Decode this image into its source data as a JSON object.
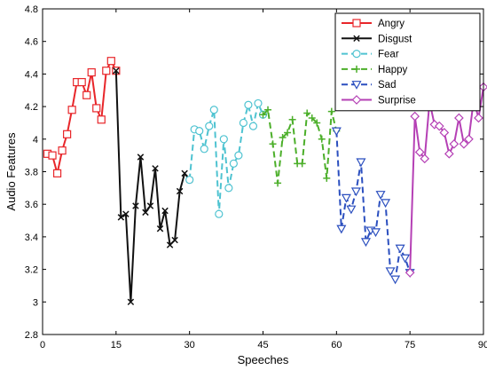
{
  "chart_data": {
    "type": "line",
    "xlabel": "Speeches",
    "ylabel": "Audio Features",
    "xlim": [
      0,
      90
    ],
    "ylim": [
      2.8,
      4.8
    ],
    "xticks": [
      0,
      15,
      30,
      45,
      60,
      75,
      90
    ],
    "yticks": [
      2.8,
      3.0,
      3.2,
      3.4,
      3.6,
      3.8,
      4.0,
      4.2,
      4.4,
      4.6,
      4.8
    ],
    "xtick_labels": [
      "0",
      "15",
      "30",
      "45",
      "60",
      "75",
      "90"
    ],
    "ytick_labels": [
      "2.8",
      "3",
      "3.2",
      "3.4",
      "3.6",
      "3.8",
      "4",
      "4.2",
      "4.4",
      "4.6",
      "4.8"
    ],
    "grid": false,
    "legend_position": "top-right",
    "series": [
      {
        "name": "Angry",
        "color": "#e8262a",
        "line_style": "solid",
        "marker": "square",
        "x": [
          1,
          2,
          3,
          4,
          5,
          6,
          7,
          8,
          9,
          10,
          11,
          12,
          13,
          14,
          15
        ],
        "y": [
          3.91,
          3.9,
          3.79,
          3.93,
          4.03,
          4.18,
          4.35,
          4.35,
          4.27,
          4.41,
          4.19,
          4.12,
          4.42,
          4.48,
          4.42
        ]
      },
      {
        "name": "Disgust",
        "color": "#111111",
        "line_style": "solid",
        "marker": "x",
        "x": [
          15,
          16,
          17,
          18,
          19,
          20,
          21,
          22,
          23,
          24,
          25,
          26,
          27,
          28,
          29,
          30
        ],
        "y": [
          4.42,
          3.52,
          3.54,
          3.0,
          3.59,
          3.89,
          3.55,
          3.59,
          3.82,
          3.45,
          3.56,
          3.35,
          3.38,
          3.68,
          3.79,
          3.75
        ]
      },
      {
        "name": "Fear",
        "color": "#4fc3d1",
        "line_style": "dashed",
        "marker": "circle",
        "x": [
          30,
          31,
          32,
          33,
          34,
          35,
          36,
          37,
          38,
          39,
          40,
          41,
          42,
          43,
          44,
          45
        ],
        "y": [
          3.75,
          4.06,
          4.05,
          3.94,
          4.08,
          4.18,
          3.54,
          4.0,
          3.7,
          3.85,
          3.9,
          4.1,
          4.21,
          4.08,
          4.22,
          4.15
        ]
      },
      {
        "name": "Happy",
        "color": "#4caf2a",
        "line_style": "dashed",
        "marker": "plus",
        "x": [
          45,
          46,
          47,
          48,
          49,
          50,
          51,
          52,
          53,
          54,
          55,
          56,
          57,
          58,
          59,
          60
        ],
        "y": [
          4.15,
          4.18,
          3.97,
          3.73,
          4.01,
          4.04,
          4.12,
          3.85,
          3.85,
          4.16,
          4.13,
          4.1,
          4.0,
          3.76,
          4.17,
          4.05
        ]
      },
      {
        "name": "Sad",
        "color": "#2b4fbf",
        "line_style": "dashed",
        "marker": "triangle-down",
        "x": [
          60,
          61,
          62,
          63,
          64,
          65,
          66,
          67,
          68,
          69,
          70,
          71,
          72,
          73,
          74,
          75
        ],
        "y": [
          4.05,
          3.45,
          3.64,
          3.57,
          3.68,
          3.86,
          3.37,
          3.44,
          3.43,
          3.66,
          3.61,
          3.19,
          3.14,
          3.33,
          3.27,
          3.18
        ]
      },
      {
        "name": "Surprise",
        "color": "#b540b5",
        "line_style": "solid",
        "marker": "diamond",
        "x": [
          75,
          76,
          77,
          78,
          79,
          80,
          81,
          82,
          83,
          84,
          85,
          86,
          87,
          88,
          89,
          90
        ],
        "y": [
          3.18,
          4.14,
          3.92,
          3.88,
          4.23,
          4.09,
          4.08,
          4.04,
          3.91,
          3.97,
          4.13,
          3.97,
          4.0,
          4.24,
          4.13,
          4.32
        ]
      }
    ]
  }
}
